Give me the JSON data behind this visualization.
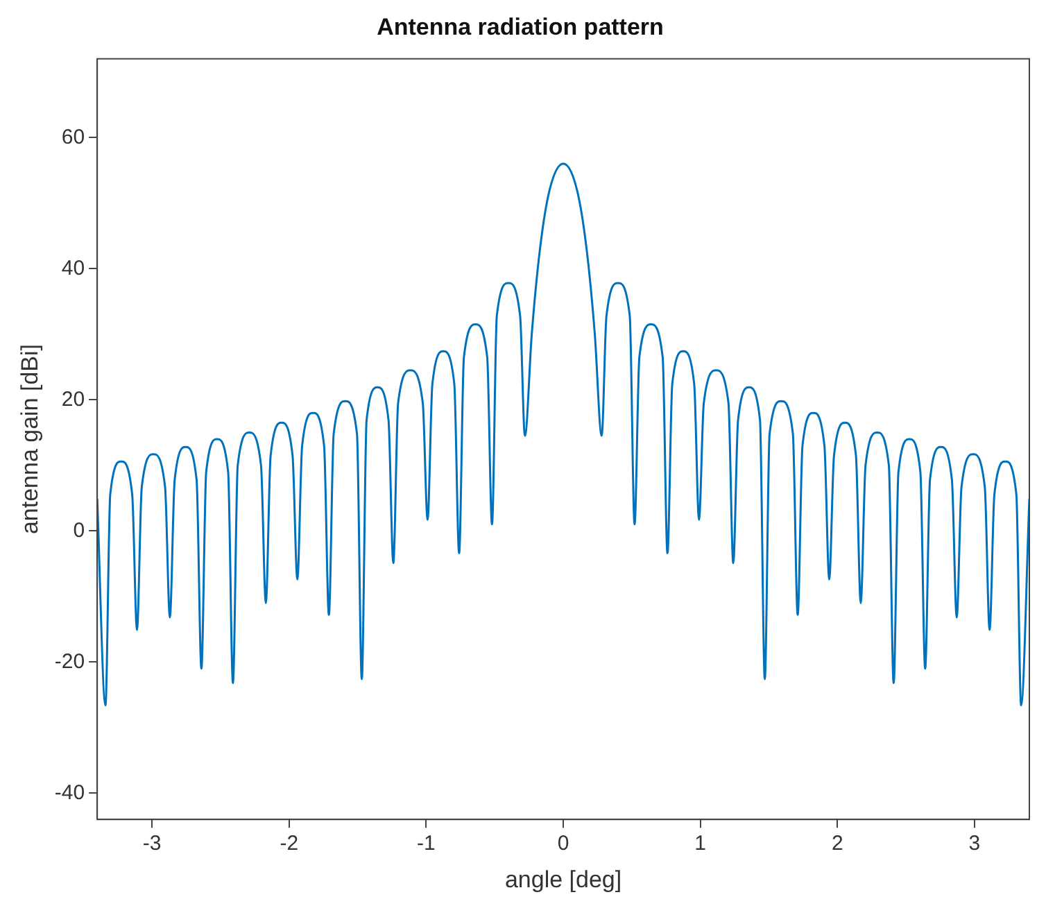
{
  "chart_data": {
    "type": "line",
    "title": "Antenna radiation pattern",
    "xlabel": "angle [deg]",
    "ylabel": "antenna gain [dBi]",
    "xlim": [
      -3.4,
      3.4
    ],
    "ylim": [
      -44,
      72
    ],
    "xticks": [
      -3,
      -2,
      -1,
      0,
      1,
      2,
      3
    ],
    "yticks": [
      -40,
      -20,
      0,
      20,
      40,
      60
    ],
    "grid": false,
    "legend": false,
    "marker": "none",
    "line_style": "solid",
    "series": [
      {
        "color": "#0072bd",
        "x": [
          -3.4,
          -3.34,
          -3.305,
          -3.225,
          -3.145,
          -3.11,
          -3.075,
          -2.99,
          -2.905,
          -2.87,
          -2.835,
          -2.755,
          -2.675,
          -2.64,
          -2.605,
          -2.525,
          -2.445,
          -2.41,
          -2.375,
          -2.29,
          -2.205,
          -2.17,
          -2.135,
          -2.055,
          -1.975,
          -1.94,
          -1.905,
          -1.825,
          -1.745,
          -1.71,
          -1.675,
          -1.59,
          -1.505,
          -1.47,
          -1.435,
          -1.355,
          -1.275,
          -1.24,
          -1.205,
          -1.115,
          -1.025,
          -0.99,
          -0.955,
          -0.875,
          -0.795,
          -0.76,
          -0.725,
          -0.64,
          -0.555,
          -0.52,
          -0.485,
          -0.4,
          -0.315,
          -0.28,
          -0.23,
          -0.17,
          -0.1,
          0,
          0.1,
          0.17,
          0.23,
          0.28,
          0.315,
          0.4,
          0.485,
          0.52,
          0.555,
          0.64,
          0.725,
          0.76,
          0.795,
          0.875,
          0.955,
          0.99,
          1.025,
          1.115,
          1.205,
          1.24,
          1.275,
          1.355,
          1.435,
          1.47,
          1.505,
          1.59,
          1.675,
          1.71,
          1.745,
          1.825,
          1.905,
          1.94,
          1.975,
          2.055,
          2.135,
          2.17,
          2.205,
          2.29,
          2.375,
          2.41,
          2.445,
          2.525,
          2.605,
          2.64,
          2.675,
          2.755,
          2.835,
          2.87,
          2.905,
          2.99,
          3.075,
          3.11,
          3.145,
          3.225,
          3.305,
          3.34,
          3.4
        ],
        "values": [
          4.9,
          -26.6,
          5.6,
          10.6,
          5.6,
          -15.1,
          6.7,
          11.7,
          6.7,
          -13.2,
          7.8,
          12.8,
          7.8,
          -21,
          9,
          14,
          9,
          -23.2,
          10,
          15,
          10,
          -11,
          11.5,
          16.5,
          11.5,
          -7.4,
          13,
          18,
          13,
          -12.8,
          14.8,
          19.8,
          14.8,
          -22.6,
          16.9,
          21.9,
          16.9,
          -4.9,
          19.5,
          24.5,
          19.5,
          1.7,
          22.4,
          27.4,
          22.4,
          -3.4,
          26.5,
          31.5,
          26.5,
          1,
          32.8,
          37.8,
          32.8,
          14.5,
          30,
          43,
          52,
          56,
          52,
          43,
          30,
          14.5,
          32.8,
          37.8,
          32.8,
          1,
          26.5,
          31.5,
          26.5,
          -3.4,
          22.4,
          27.4,
          22.4,
          1.7,
          19.5,
          24.5,
          19.5,
          -4.9,
          16.9,
          21.9,
          16.9,
          -22.6,
          14.8,
          19.8,
          14.8,
          -12.8,
          13,
          18,
          13,
          -7.4,
          11.5,
          16.5,
          11.5,
          -11,
          10,
          15,
          10,
          -23.2,
          9,
          14,
          9,
          -21,
          7.8,
          12.8,
          7.8,
          -13.2,
          6.7,
          11.7,
          6.7,
          -15.1,
          5.6,
          10.6,
          5.6,
          -26.6,
          4.9
        ]
      }
    ]
  }
}
